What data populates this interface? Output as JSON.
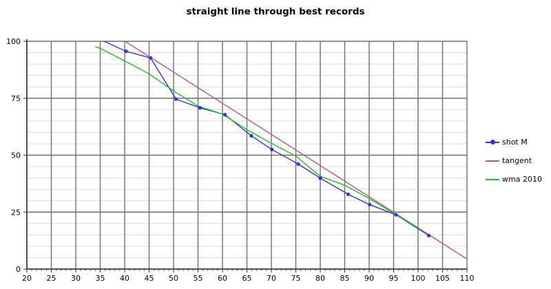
{
  "title": "straight line through best records",
  "chart_data": {
    "type": "line",
    "title": "straight line through best records",
    "x_axis": {
      "min": 20,
      "max": 110,
      "tick_step": 5,
      "minor_tick_step": 1,
      "tick_labels": [
        "20",
        "25",
        "30",
        "35",
        "40",
        "45",
        "50",
        "55",
        "60",
        "65",
        "70",
        "75",
        "80",
        "85",
        "90",
        "95",
        "100",
        "105",
        "110"
      ]
    },
    "y_axis": {
      "min": 0,
      "max": 100,
      "major_step": 25,
      "minor_grid_step": 5,
      "tick_labels": [
        "0",
        "25",
        "50",
        "75",
        "100"
      ]
    },
    "grid": {
      "vertical_major": true,
      "horizontal_major": true,
      "horizontal_minor": true,
      "major_color": "#6f6f6f",
      "minor_color": "#d9d9d9",
      "axis_color": "#333333"
    },
    "legend_position": "right",
    "series": [
      {
        "name": "shot M",
        "color": "#3333cc",
        "marker": true,
        "points": [
          [
            35.0,
            100.8
          ],
          [
            40.3,
            95.6
          ],
          [
            45.3,
            92.7
          ],
          [
            50.5,
            74.6
          ],
          [
            55.4,
            70.8
          ],
          [
            60.5,
            67.8
          ],
          [
            65.9,
            58.5
          ],
          [
            70.1,
            52.5
          ],
          [
            75.5,
            46.1
          ],
          [
            80.0,
            39.9
          ],
          [
            85.7,
            32.8
          ],
          [
            90.1,
            28.3
          ],
          [
            95.5,
            23.8
          ],
          [
            102.2,
            14.7
          ]
        ]
      },
      {
        "name": "tangent",
        "color": "#b25878",
        "marker": false,
        "points": [
          [
            40.1,
            100.0
          ],
          [
            110.0,
            4.4
          ]
        ]
      },
      {
        "name": "wma 2010",
        "color": "#2db52d",
        "marker": false,
        "points": [
          [
            34.0,
            97.6
          ],
          [
            35.0,
            96.9
          ],
          [
            40.0,
            91.4
          ],
          [
            45.0,
            85.7
          ],
          [
            50.0,
            78.2
          ],
          [
            55.0,
            71.6
          ],
          [
            60.0,
            68.0
          ],
          [
            65.0,
            61.2
          ],
          [
            70.0,
            55.2
          ],
          [
            75.0,
            49.6
          ],
          [
            80.0,
            40.7
          ],
          [
            85.0,
            36.8
          ],
          [
            90.0,
            31.0
          ],
          [
            95.0,
            24.5
          ],
          [
            100.0,
            18.1
          ],
          [
            100.4,
            17.4
          ]
        ]
      }
    ]
  }
}
